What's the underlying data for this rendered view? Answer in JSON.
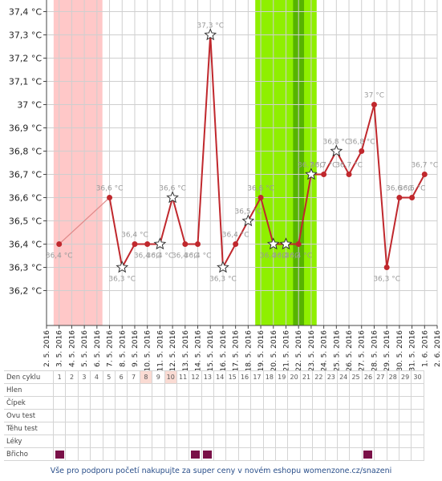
{
  "chart_data": {
    "type": "line",
    "title": "",
    "xlabel": "",
    "ylabel": "",
    "ylim": [
      36.05,
      37.45
    ],
    "y_ticks": [
      "36,2 °C",
      "36,3 °C",
      "36,4 °C",
      "36,5 °C",
      "36,6 °C",
      "36,7 °C",
      "36,8 °C",
      "36,9 °C",
      "37 °C",
      "37,1 °C",
      "37,2 °C",
      "37,3 °C",
      "37,4 °C"
    ],
    "x_dates": [
      "2. 5. 2016",
      "3. 5. 2016",
      "4. 5. 2016",
      "5. 5. 2016",
      "6. 5. 2016",
      "7. 5. 2016",
      "8. 5. 2016",
      "9. 5. 2016",
      "10. 5. 2016",
      "11. 5. 2016",
      "12. 5. 2016",
      "13. 5. 2016",
      "14. 5. 2016",
      "15. 5. 2016",
      "16. 5. 2016",
      "17. 5. 2016",
      "18. 5. 2016",
      "19. 5. 2016",
      "20. 5. 2016",
      "21. 5. 2016",
      "22. 5. 2016",
      "23. 5. 2016",
      "24. 5. 2016",
      "25. 5. 2016",
      "26. 5. 2016",
      "27. 5. 2016",
      "28. 5. 2016",
      "29. 5. 2016",
      "30. 5. 2016",
      "31. 5. 2016",
      "1. 6. 2016",
      "2. 6. 2016"
    ],
    "series": [
      {
        "values": [
          null,
          36.4,
          null,
          null,
          null,
          36.6,
          36.3,
          36.4,
          36.4,
          36.4,
          36.6,
          36.4,
          36.4,
          37.3,
          36.3,
          36.4,
          36.5,
          36.6,
          36.4,
          36.4,
          36.4,
          36.7,
          36.7,
          36.8,
          36.7,
          36.8,
          37,
          36.3,
          36.6,
          36.6,
          36.7,
          null
        ],
        "labels": [
          null,
          "36,4 °C",
          null,
          null,
          null,
          "36,6 °C",
          "36,3 °C",
          "36,4 °C",
          "36,4 °C",
          "36,4 °C",
          "36,6 °C",
          "36,4 °C",
          "36,4 °C",
          "37,3 °C",
          "36,3 °C",
          "36,4 °C",
          "36,5 °C",
          "36,6 °C",
          "36,4 °C",
          "36,4 °C",
          "36,4 °C",
          "36,7 °C",
          "36,7 °C",
          "36,8 °C",
          "36,7 °C",
          "36,8 °C",
          "37 °C",
          "36,3 °C",
          "36,6 °C",
          "36,6 °C",
          "36,7 °C",
          null
        ],
        "star_days": [
          "8. 5. 2016",
          "11. 5. 2016",
          "12. 5. 2016",
          "15. 5. 2016",
          "16. 5. 2016",
          "18. 5. 2016",
          "20. 5. 2016",
          "21. 5. 2016",
          "23. 5. 2016",
          "25. 5. 2016"
        ]
      }
    ],
    "bands": [
      {
        "from": "3. 5. 2016",
        "to": "6. 5. 2016",
        "color": "#ffc8c8"
      },
      {
        "from": "19. 5. 2016",
        "to": "23. 5. 2016",
        "color": "#8fef00"
      },
      {
        "from": "22. 5. 2016",
        "to": "22. 5. 2016",
        "color": "#56b300"
      }
    ],
    "line_color": "#c0282d",
    "grid": true
  },
  "cycle_table": {
    "rows": [
      {
        "label": "Den cyklu"
      },
      {
        "label": "Hlen"
      },
      {
        "label": "Čípek"
      },
      {
        "label": "Ovu test"
      },
      {
        "label": "Těhu test"
      },
      {
        "label": "Léky"
      },
      {
        "label": "Břicho"
      }
    ],
    "days": [
      "1",
      "2",
      "3",
      "4",
      "5",
      "6",
      "7",
      "8",
      "9",
      "10",
      "11",
      "12",
      "13",
      "14",
      "15",
      "16",
      "17",
      "18",
      "19",
      "20",
      "21",
      "22",
      "23",
      "24",
      "25",
      "26",
      "27",
      "28",
      "29",
      "30"
    ],
    "highlighted_days": [
      "8",
      "10"
    ],
    "bricho_marked_days": [
      "1",
      "12",
      "13",
      "26"
    ],
    "mark_color": "#7a1048"
  },
  "promo_text": "Vše pro podporu početí nakupujte za super ceny v novém eshopu womenzone.cz/snazeni"
}
